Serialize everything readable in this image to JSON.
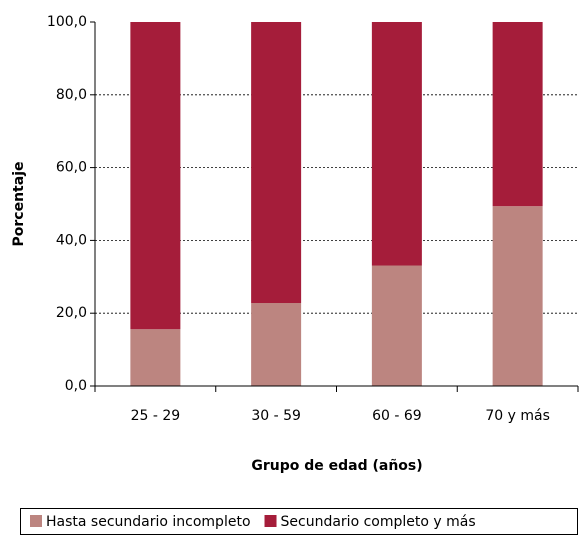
{
  "chart_data": {
    "type": "stacked_bar",
    "x_label": "Grupo de edad (años)",
    "y_label": "Porcentaje",
    "categories": [
      "25 - 29",
      "30 - 59",
      "60 - 69",
      "70 y más"
    ],
    "series": [
      {
        "name": "Hasta secundario incompleto",
        "color": "#bc8580",
        "values": [
          15.6,
          22.8,
          33.1,
          49.4
        ]
      },
      {
        "name": "Secundario completo y más",
        "color": "#a51d3a",
        "values": [
          84.4,
          77.2,
          66.9,
          50.6
        ]
      }
    ],
    "ylim": [
      0,
      100
    ],
    "yticks": [
      {
        "value": 0,
        "label": "0,0"
      },
      {
        "value": 20,
        "label": "20,0"
      },
      {
        "value": 40,
        "label": "40,0"
      },
      {
        "value": 60,
        "label": "60,0"
      },
      {
        "value": 80,
        "label": "80,0"
      },
      {
        "value": 100,
        "label": "100,0"
      }
    ],
    "grid": true,
    "legend": "bottom"
  }
}
